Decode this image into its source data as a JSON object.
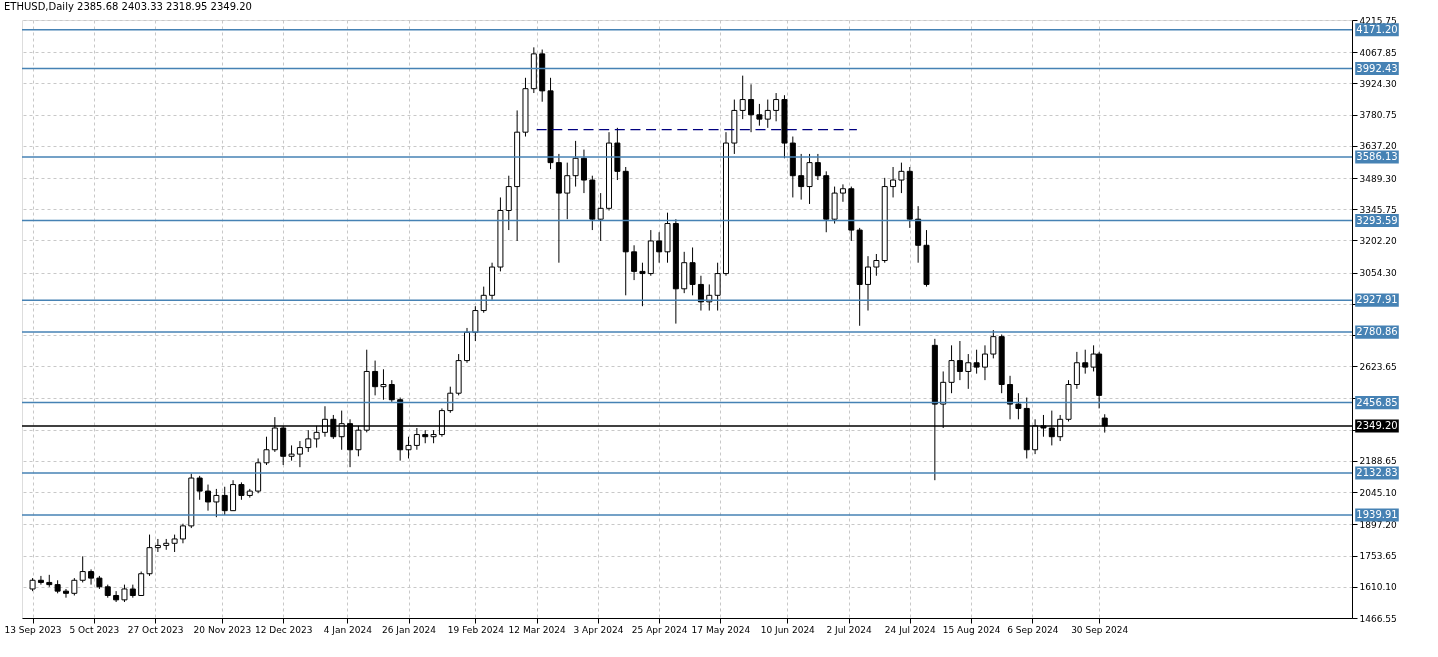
{
  "chart_data": {
    "type": "candlestick",
    "title": "ETHUSD,Daily  2385.68 2403.33 2318.95 2349.20",
    "color": "#000000",
    "x": [
      "2023-09-13",
      "2023-09-16",
      "2023-09-19",
      "2023-09-22",
      "2023-09-25",
      "2023-09-28",
      "2023-10-01",
      "2023-10-04",
      "2023-10-07",
      "2023-10-10",
      "2023-10-13",
      "2023-10-16",
      "2023-10-19",
      "2023-10-22",
      "2023-10-25",
      "2023-10-28",
      "2023-10-31",
      "2023-11-03",
      "2023-11-06",
      "2023-11-09",
      "2023-11-12",
      "2023-11-15",
      "2023-11-18",
      "2023-11-21",
      "2023-11-24",
      "2023-11-27",
      "2023-11-30",
      "2023-12-03",
      "2023-12-06",
      "2023-12-09",
      "2023-12-12",
      "2023-12-15",
      "2023-12-18",
      "2023-12-21",
      "2023-12-24",
      "2023-12-27",
      "2023-12-30",
      "2024-01-02",
      "2024-01-05",
      "2024-01-08",
      "2024-01-11",
      "2024-01-14",
      "2024-01-17",
      "2024-01-20",
      "2024-01-23",
      "2024-01-26",
      "2024-01-29",
      "2024-02-01",
      "2024-02-04",
      "2024-02-07",
      "2024-02-10",
      "2024-02-13",
      "2024-02-16",
      "2024-02-19",
      "2024-02-22",
      "2024-02-25",
      "2024-02-28",
      "2024-03-02",
      "2024-03-05",
      "2024-03-08",
      "2024-03-11",
      "2024-03-14",
      "2024-03-17",
      "2024-03-20",
      "2024-03-23",
      "2024-03-26",
      "2024-03-29",
      "2024-04-01",
      "2024-04-04",
      "2024-04-07",
      "2024-04-10",
      "2024-04-13",
      "2024-04-16",
      "2024-04-19",
      "2024-04-22",
      "2024-04-25",
      "2024-04-28",
      "2024-05-01",
      "2024-05-04",
      "2024-05-07",
      "2024-05-10",
      "2024-05-13",
      "2024-05-16",
      "2024-05-19",
      "2024-05-22",
      "2024-05-25",
      "2024-05-28",
      "2024-05-31",
      "2024-06-03",
      "2024-06-06",
      "2024-06-09",
      "2024-06-12",
      "2024-06-15",
      "2024-06-18",
      "2024-06-21",
      "2024-06-24",
      "2024-06-27",
      "2024-06-30",
      "2024-07-03",
      "2024-07-06",
      "2024-07-09",
      "2024-07-12",
      "2024-07-15",
      "2024-07-18",
      "2024-07-21",
      "2024-07-24",
      "2024-07-27",
      "2024-07-30",
      "2024-08-02",
      "2024-08-05",
      "2024-08-08",
      "2024-08-11",
      "2024-08-14",
      "2024-08-17",
      "2024-08-20",
      "2024-08-23",
      "2024-08-26",
      "2024-08-29",
      "2024-09-01",
      "2024-09-04",
      "2024-09-07",
      "2024-09-10",
      "2024-09-13",
      "2024-09-16",
      "2024-09-19",
      "2024-09-22",
      "2024-09-25",
      "2024-09-28",
      "2024-09-30",
      "2024-10-02"
    ],
    "ohlc": [
      [
        1600,
        1650,
        1590,
        1640
      ],
      [
        1640,
        1660,
        1620,
        1630
      ],
      [
        1630,
        1665,
        1610,
        1620
      ],
      [
        1620,
        1640,
        1580,
        1590
      ],
      [
        1590,
        1600,
        1560,
        1580
      ],
      [
        1580,
        1650,
        1570,
        1640
      ],
      [
        1640,
        1750,
        1630,
        1680
      ],
      [
        1680,
        1690,
        1620,
        1650
      ],
      [
        1650,
        1660,
        1600,
        1610
      ],
      [
        1610,
        1620,
        1560,
        1570
      ],
      [
        1570,
        1590,
        1540,
        1550
      ],
      [
        1550,
        1620,
        1540,
        1600
      ],
      [
        1600,
        1620,
        1560,
        1570
      ],
      [
        1570,
        1680,
        1570,
        1670
      ],
      [
        1670,
        1850,
        1660,
        1790
      ],
      [
        1790,
        1830,
        1770,
        1800
      ],
      [
        1800,
        1830,
        1780,
        1810
      ],
      [
        1810,
        1850,
        1770,
        1830
      ],
      [
        1830,
        1900,
        1810,
        1890
      ],
      [
        1890,
        2130,
        1880,
        2110
      ],
      [
        2110,
        2120,
        2010,
        2050
      ],
      [
        2050,
        2080,
        1960,
        2000
      ],
      [
        2000,
        2060,
        1930,
        2030
      ],
      [
        2030,
        2070,
        1940,
        1960
      ],
      [
        1960,
        2100,
        1960,
        2080
      ],
      [
        2080,
        2090,
        2010,
        2030
      ],
      [
        2030,
        2060,
        2020,
        2050
      ],
      [
        2050,
        2200,
        2040,
        2180
      ],
      [
        2180,
        2300,
        2170,
        2240
      ],
      [
        2240,
        2390,
        2230,
        2340
      ],
      [
        2340,
        2350,
        2170,
        2210
      ],
      [
        2210,
        2260,
        2190,
        2220
      ],
      [
        2220,
        2280,
        2160,
        2250
      ],
      [
        2250,
        2330,
        2230,
        2290
      ],
      [
        2290,
        2350,
        2250,
        2320
      ],
      [
        2320,
        2440,
        2300,
        2380
      ],
      [
        2380,
        2400,
        2290,
        2300
      ],
      [
        2300,
        2420,
        2240,
        2360
      ],
      [
        2360,
        2380,
        2160,
        2240
      ],
      [
        2240,
        2350,
        2210,
        2330
      ],
      [
        2330,
        2700,
        2320,
        2600
      ],
      [
        2600,
        2650,
        2490,
        2530
      ],
      [
        2530,
        2610,
        2470,
        2540
      ],
      [
        2540,
        2560,
        2460,
        2470
      ],
      [
        2470,
        2480,
        2190,
        2240
      ],
      [
        2240,
        2300,
        2200,
        2260
      ],
      [
        2260,
        2340,
        2240,
        2310
      ],
      [
        2310,
        2330,
        2270,
        2300
      ],
      [
        2300,
        2330,
        2270,
        2310
      ],
      [
        2310,
        2430,
        2300,
        2420
      ],
      [
        2420,
        2530,
        2410,
        2500
      ],
      [
        2500,
        2680,
        2490,
        2650
      ],
      [
        2650,
        2800,
        2640,
        2780
      ],
      [
        2780,
        2900,
        2740,
        2880
      ],
      [
        2880,
        2990,
        2870,
        2950
      ],
      [
        2950,
        3100,
        2930,
        3080
      ],
      [
        3080,
        3400,
        3060,
        3340
      ],
      [
        3340,
        3500,
        3250,
        3450
      ],
      [
        3450,
        3800,
        3200,
        3700
      ],
      [
        3700,
        3950,
        3680,
        3900
      ],
      [
        3900,
        4090,
        3880,
        4060
      ],
      [
        4060,
        4080,
        3840,
        3890
      ],
      [
        3890,
        3950,
        3530,
        3560
      ],
      [
        3560,
        3600,
        3100,
        3420
      ],
      [
        3420,
        3560,
        3300,
        3500
      ],
      [
        3500,
        3660,
        3450,
        3580
      ],
      [
        3580,
        3620,
        3420,
        3480
      ],
      [
        3480,
        3500,
        3250,
        3300
      ],
      [
        3300,
        3420,
        3200,
        3350
      ],
      [
        3350,
        3700,
        3340,
        3650
      ],
      [
        3650,
        3720,
        3480,
        3520
      ],
      [
        3520,
        3540,
        2950,
        3150
      ],
      [
        3150,
        3180,
        3020,
        3060
      ],
      [
        3060,
        3100,
        2900,
        3050
      ],
      [
        3050,
        3250,
        3040,
        3200
      ],
      [
        3200,
        3240,
        3100,
        3150
      ],
      [
        3150,
        3330,
        3100,
        3280
      ],
      [
        3280,
        3300,
        2820,
        2980
      ],
      [
        2980,
        3150,
        2960,
        3100
      ],
      [
        3100,
        3170,
        2950,
        3000
      ],
      [
        3000,
        3040,
        2880,
        2920
      ],
      [
        2920,
        3000,
        2880,
        2950
      ],
      [
        2950,
        3100,
        2880,
        3050
      ],
      [
        3050,
        3700,
        3040,
        3650
      ],
      [
        3650,
        3850,
        3600,
        3800
      ],
      [
        3800,
        3960,
        3760,
        3850
      ],
      [
        3850,
        3920,
        3700,
        3780
      ],
      [
        3780,
        3830,
        3730,
        3760
      ],
      [
        3760,
        3850,
        3720,
        3800
      ],
      [
        3800,
        3880,
        3750,
        3850
      ],
      [
        3850,
        3870,
        3580,
        3650
      ],
      [
        3650,
        3680,
        3400,
        3500
      ],
      [
        3500,
        3600,
        3390,
        3450
      ],
      [
        3450,
        3600,
        3370,
        3560
      ],
      [
        3560,
        3600,
        3480,
        3500
      ],
      [
        3500,
        3520,
        3240,
        3300
      ],
      [
        3300,
        3450,
        3280,
        3420
      ],
      [
        3420,
        3460,
        3380,
        3440
      ],
      [
        3440,
        3450,
        3200,
        3250
      ],
      [
        3250,
        3260,
        2810,
        3000
      ],
      [
        3000,
        3130,
        2880,
        3080
      ],
      [
        3080,
        3140,
        3040,
        3110
      ],
      [
        3110,
        3490,
        3100,
        3450
      ],
      [
        3450,
        3540,
        3400,
        3480
      ],
      [
        3480,
        3560,
        3420,
        3520
      ],
      [
        3520,
        3540,
        3260,
        3300
      ],
      [
        3300,
        3360,
        3100,
        3180
      ],
      [
        3180,
        3250,
        2990,
        3000
      ],
      [
        2720,
        2750,
        2100,
        2450
      ],
      [
        2450,
        2600,
        2340,
        2550
      ],
      [
        2550,
        2720,
        2500,
        2650
      ],
      [
        2650,
        2740,
        2560,
        2600
      ],
      [
        2600,
        2680,
        2520,
        2640
      ],
      [
        2640,
        2700,
        2590,
        2620
      ],
      [
        2620,
        2720,
        2560,
        2680
      ],
      [
        2680,
        2790,
        2660,
        2760
      ],
      [
        2760,
        2770,
        2500,
        2540
      ],
      [
        2540,
        2580,
        2380,
        2450
      ],
      [
        2450,
        2500,
        2380,
        2430
      ],
      [
        2430,
        2480,
        2200,
        2240
      ],
      [
        2240,
        2380,
        2220,
        2350
      ],
      [
        2350,
        2400,
        2300,
        2340
      ],
      [
        2340,
        2420,
        2260,
        2300
      ],
      [
        2300,
        2400,
        2280,
        2380
      ],
      [
        2380,
        2560,
        2370,
        2540
      ],
      [
        2540,
        2690,
        2520,
        2640
      ],
      [
        2640,
        2700,
        2590,
        2620
      ],
      [
        2620,
        2720,
        2600,
        2680
      ],
      [
        2680,
        2690,
        2430,
        2490
      ],
      [
        2385.68,
        2403.33,
        2318.95,
        2349.2
      ]
    ],
    "series": [
      {
        "type": "line",
        "color": "#000080",
        "line_style": "dashed",
        "x": [
          "2024-03-12",
          "2024-07-05"
        ],
        "values": [
          3712,
          3712
        ]
      }
    ],
    "xlim": [
      "2023-09-11",
      "2024-12-28"
    ],
    "xticks": [
      {
        "value": "2023-09-13",
        "label": "13 Sep 2023"
      },
      {
        "value": "2023-10-05",
        "label": "5 Oct 2023"
      },
      {
        "value": "2023-10-27",
        "label": "27 Oct 2023"
      },
      {
        "value": "2023-11-20",
        "label": "20 Nov 2023"
      },
      {
        "value": "2023-12-12",
        "label": "12 Dec 2023"
      },
      {
        "value": "2024-01-04",
        "label": "4 Jan 2024"
      },
      {
        "value": "2024-01-26",
        "label": "26 Jan 2024"
      },
      {
        "value": "2024-02-19",
        "label": "19 Feb 2024"
      },
      {
        "value": "2024-03-12",
        "label": "12 Mar 2024"
      },
      {
        "value": "2024-04-03",
        "label": "3 Apr 2024"
      },
      {
        "value": "2024-04-25",
        "label": "25 Apr 2024"
      },
      {
        "value": "2024-05-17",
        "label": "17 May 2024"
      },
      {
        "value": "2024-06-10",
        "label": "10 Jun 2024"
      },
      {
        "value": "2024-07-02",
        "label": "2 Jul 2024"
      },
      {
        "value": "2024-07-24",
        "label": "24 Jul 2024"
      },
      {
        "value": "2024-08-15",
        "label": "15 Aug 2024"
      },
      {
        "value": "2024-09-06",
        "label": "6 Sep 2024"
      },
      {
        "value": "2024-09-30",
        "label": "30 Sep 2024"
      }
    ],
    "ylim": [
      1466.55,
      4215.75
    ],
    "yticks": [
      {
        "value": 1466.55,
        "label": "1466.55"
      },
      {
        "value": 1610.1,
        "label": "1610.10"
      },
      {
        "value": 1753.65,
        "label": "1753.65"
      },
      {
        "value": 1897.2,
        "label": "1897.20"
      },
      {
        "value": 2045.1,
        "label": "2045.10"
      },
      {
        "value": 2188.65,
        "label": "2188.65"
      },
      {
        "value": 2332.2,
        "label": null
      },
      {
        "value": 2475.75,
        "label": null
      },
      {
        "value": 2623.65,
        "label": "2623.65"
      },
      {
        "value": 2767.2,
        "label": null
      },
      {
        "value": 2910.75,
        "label": null
      },
      {
        "value": 3054.3,
        "label": "3054.30"
      },
      {
        "value": 3202.2,
        "label": "3202.20"
      },
      {
        "value": 3345.75,
        "label": "3345.75"
      },
      {
        "value": 3489.3,
        "label": "3489.30"
      },
      {
        "value": 3637.2,
        "label": "3637.20"
      },
      {
        "value": 3780.75,
        "label": "3780.75"
      },
      {
        "value": 3924.3,
        "label": "3924.30"
      },
      {
        "value": 4067.85,
        "label": "4067.85"
      },
      {
        "value": 4215.75,
        "label": "4215.75"
      }
    ],
    "ref_lines": [
      {
        "axis": "y",
        "value": 4171.2,
        "label": "4171.20",
        "color": "#4682b4"
      },
      {
        "axis": "y",
        "value": 3992.43,
        "label": "3992.43",
        "color": "#4682b4"
      },
      {
        "axis": "y",
        "value": 3586.13,
        "label": "3586.13",
        "color": "#4682b4"
      },
      {
        "axis": "y",
        "value": 3293.59,
        "label": "3293.59",
        "color": "#4682b4"
      },
      {
        "axis": "y",
        "value": 2927.91,
        "label": "2927.91",
        "color": "#4682b4"
      },
      {
        "axis": "y",
        "value": 2780.86,
        "label": "2780.86",
        "color": "#4682b4"
      },
      {
        "axis": "y",
        "value": 2456.85,
        "label": "2456.85",
        "color": "#4682b4"
      },
      {
        "axis": "y",
        "value": 2349.2,
        "label": "2349.20",
        "color": "#000000"
      },
      {
        "axis": "y",
        "value": 2132.83,
        "label": "2132.83",
        "color": "#4682b4"
      },
      {
        "axis": "y",
        "value": 1939.91,
        "label": "1939.91",
        "color": "#4682b4"
      }
    ],
    "grid": true
  }
}
